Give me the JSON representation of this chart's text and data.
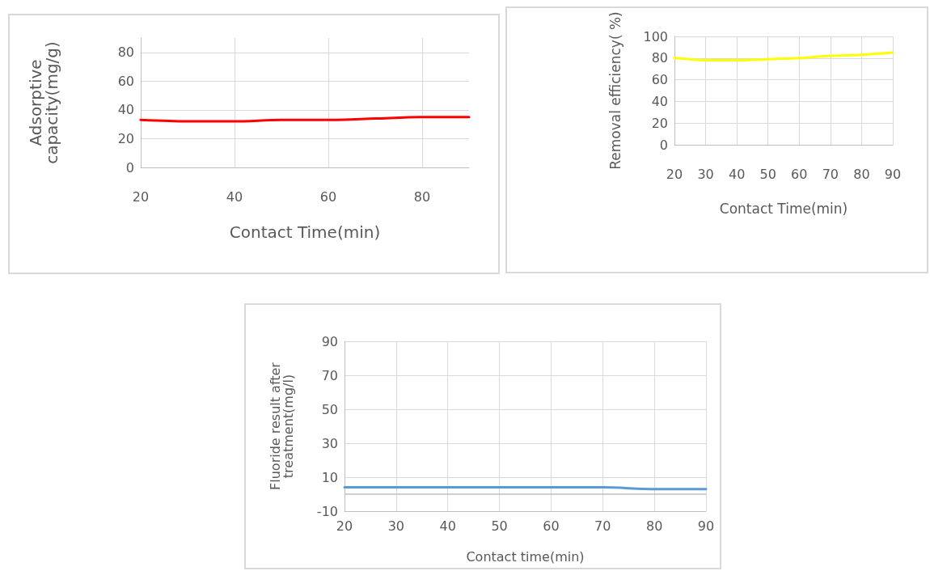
{
  "chart_data": [
    {
      "type": "line",
      "xlabel": "Contact Time(min)",
      "ylabel": "Adsorptive capacity(mg/g)",
      "x": [
        20,
        30,
        40,
        50,
        60,
        70,
        80,
        90
      ],
      "series": [
        {
          "color": "#ff0000",
          "values": [
            33,
            32,
            32,
            33,
            33,
            34,
            35,
            35
          ]
        }
      ],
      "xlim": [
        20,
        90
      ],
      "xticks": [
        20,
        40,
        60,
        80
      ],
      "ylim": [
        0,
        90
      ],
      "yticks": [
        0,
        20,
        40,
        60,
        80
      ],
      "grid": true,
      "marker": "none",
      "line_style": "solid"
    },
    {
      "type": "line",
      "xlabel": "Contact Time(min)",
      "ylabel": "Removal efficiency( %)",
      "x": [
        20,
        25,
        30,
        40,
        50,
        60,
        70,
        80,
        90
      ],
      "series": [
        {
          "color": "#ffff00",
          "values": [
            80,
            79,
            78,
            78,
            79,
            80,
            82,
            83,
            85
          ]
        }
      ],
      "xlim": [
        20,
        90
      ],
      "xticks": [
        20,
        30,
        40,
        50,
        60,
        70,
        80,
        90
      ],
      "ylim": [
        0,
        100
      ],
      "yticks": [
        0,
        20,
        40,
        60,
        80,
        100
      ],
      "grid": true,
      "marker": "none",
      "line_style": "solid"
    },
    {
      "type": "line",
      "xlabel": "Contact time(min)",
      "ylabel": "Fluoride result after treatment(mg/l)",
      "x": [
        20,
        30,
        40,
        50,
        60,
        70,
        80,
        90
      ],
      "series": [
        {
          "color": "#5b9bd5",
          "values": [
            4,
            4,
            4,
            4,
            4,
            4,
            3,
            3
          ]
        }
      ],
      "xlim": [
        20,
        90
      ],
      "xticks": [
        20,
        30,
        40,
        50,
        60,
        70,
        80,
        90
      ],
      "ylim": [
        -10,
        90
      ],
      "yticks": [
        -10,
        10,
        30,
        50,
        70,
        90
      ],
      "ref_lines": [
        {
          "axis": "y",
          "value": 0,
          "color": "#bfbfbf"
        }
      ],
      "grid": true,
      "marker": "none",
      "line_style": "solid"
    }
  ]
}
